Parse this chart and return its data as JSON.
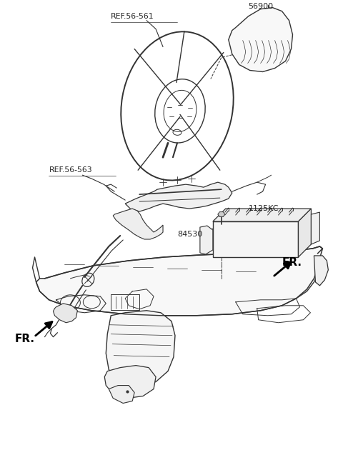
{
  "background_color": "#ffffff",
  "fig_width": 4.8,
  "fig_height": 6.58,
  "dpi": 100,
  "labels": {
    "ref_56_561": "REF.56-561",
    "ref_56_563": "REF.56-563",
    "part_56900": "56900",
    "part_84530": "84530",
    "part_1125KC": "1125KC",
    "fr_left": "FR.",
    "fr_right": "FR."
  },
  "line_color": "#333333",
  "text_color": "#222222",
  "arrow_color": "#111111"
}
